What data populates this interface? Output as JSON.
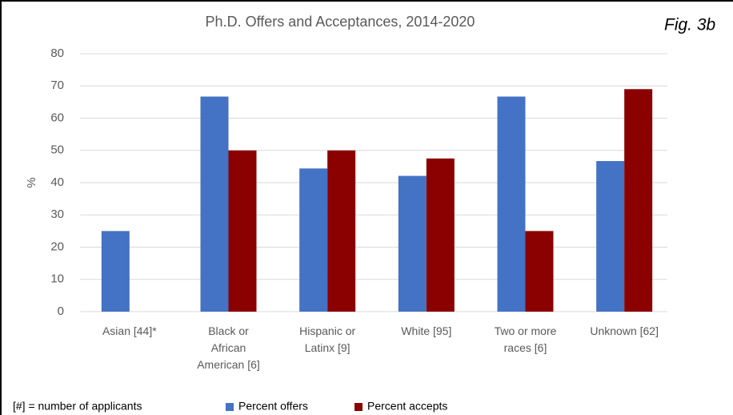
{
  "chart_data": {
    "type": "bar",
    "title": "Ph.D. Offers and Acceptances, 2014-2020",
    "figure_label": "Fig. 3b",
    "y_label": "%",
    "note": "[#] = number of applicants",
    "categories": [
      "Asian [44]*",
      "Black or African American [6]",
      "Hispanic or Latinx [9]",
      "White [95]",
      "Two or more races [6]",
      "Unknown [62]"
    ],
    "series": [
      {
        "name": "Percent offers",
        "color": "#4472c4",
        "values": [
          25,
          66.7,
          44.4,
          42.1,
          66.7,
          46.7
        ]
      },
      {
        "name": "Percent accepts",
        "color": "#8b0000",
        "values": [
          0,
          50,
          50,
          47.5,
          25,
          69
        ]
      }
    ],
    "ylim": [
      0,
      80
    ],
    "yticks": [
      0,
      10,
      20,
      30,
      40,
      50,
      60,
      70,
      80
    ],
    "grid": true,
    "legend": "bottom"
  }
}
